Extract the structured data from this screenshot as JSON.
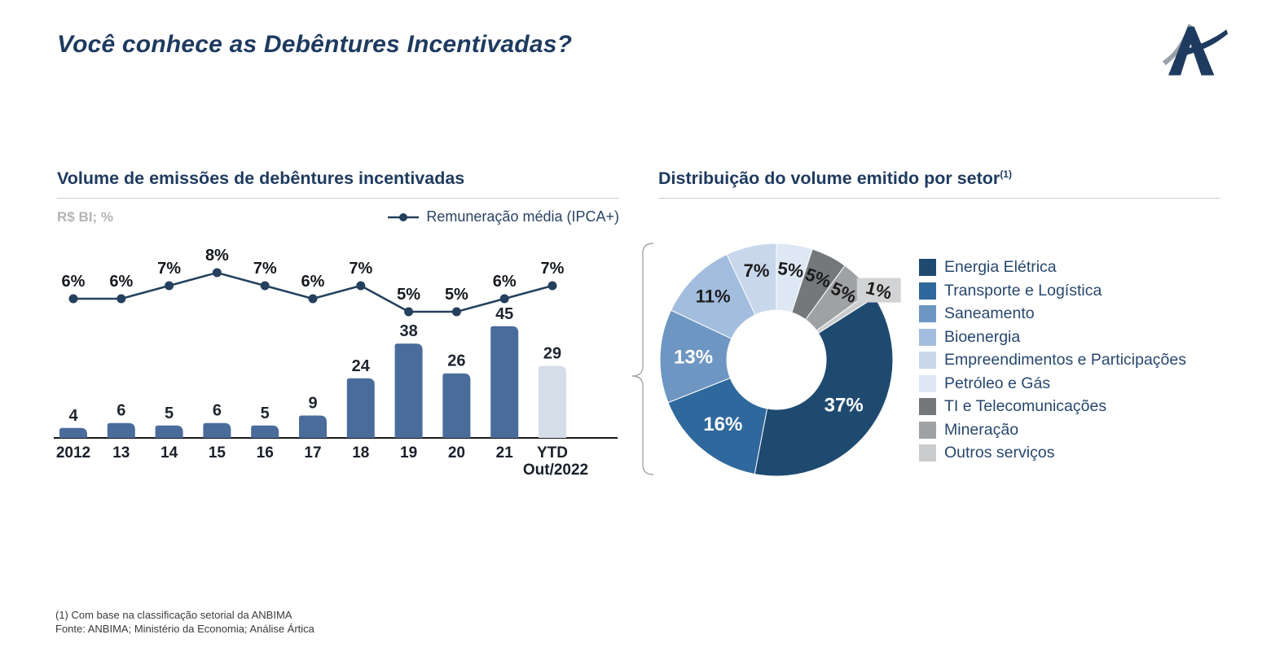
{
  "slide": {
    "title": "Você conhece as Debêntures Incentivadas?",
    "logo": "artica-logo",
    "footnotes": [
      "(1) Com base na classificação setorial da ANBIMA",
      "Fonte: ANBIMA; Ministério da Economia; Análise Ártica"
    ]
  },
  "left_chart": {
    "title": "Volume de emissões de debêntures incentivadas",
    "units": "R$ BI; %",
    "line_legend": "Remuneração média (IPCA+)"
  },
  "right_chart": {
    "title": "Distribuição do volume emitido por setor",
    "superscript": "(1)"
  },
  "colors": {
    "title_navy": "#1E3A5F",
    "bar_blue": "#4A6C9B",
    "bar_ytd": "#D4DDE8",
    "line_navy": "#24405E",
    "callout_gray": "#D2D3D5"
  },
  "chart_data": [
    {
      "type": "bar",
      "title": "Volume de emissões de debêntures incentivadas",
      "ylabel": "R$ BI; %",
      "categories": [
        "2012",
        "13",
        "14",
        "15",
        "16",
        "17",
        "18",
        "19",
        "20",
        "21",
        "YTD"
      ],
      "last_category_sub": "Out/2022",
      "series": [
        {
          "name": "Volume de emissões (R$ BI)",
          "type": "bar",
          "values": [
            4,
            6,
            5,
            6,
            5,
            9,
            24,
            38,
            26,
            45,
            29
          ],
          "color": "#4A6C9B",
          "last_bar_color": "#D4DDE8"
        },
        {
          "name": "Remuneração média (IPCA+)",
          "type": "line",
          "unit": "%",
          "values": [
            6,
            6,
            7,
            8,
            7,
            6,
            7,
            5,
            5,
            6,
            7
          ],
          "color": "#24405E"
        }
      ]
    },
    {
      "type": "pie",
      "donut": true,
      "title": "Distribuição do volume emitido por setor (1)",
      "legend_position": "right",
      "slices": [
        {
          "label": "Energia Elétrica",
          "value": 37,
          "color": "#1F4A70"
        },
        {
          "label": "Transporte e Logística",
          "value": 16,
          "color": "#2F689C"
        },
        {
          "label": "Saneamento",
          "value": 13,
          "color": "#6E96C3"
        },
        {
          "label": "Bioenergia",
          "value": 11,
          "color": "#A3BDDE"
        },
        {
          "label": "Empreendimentos e Participações",
          "value": 7,
          "color": "#C8D7EB"
        },
        {
          "label": "Petróleo e Gás",
          "value": 5,
          "color": "#DEE7F4"
        },
        {
          "label": "TI e Telecomunicações",
          "value": 5,
          "color": "#75787B"
        },
        {
          "label": "Mineração",
          "value": 5,
          "color": "#9FA1A4"
        },
        {
          "label": "Outros serviços",
          "value": 1,
          "color": "#CBCCCE"
        }
      ]
    }
  ]
}
